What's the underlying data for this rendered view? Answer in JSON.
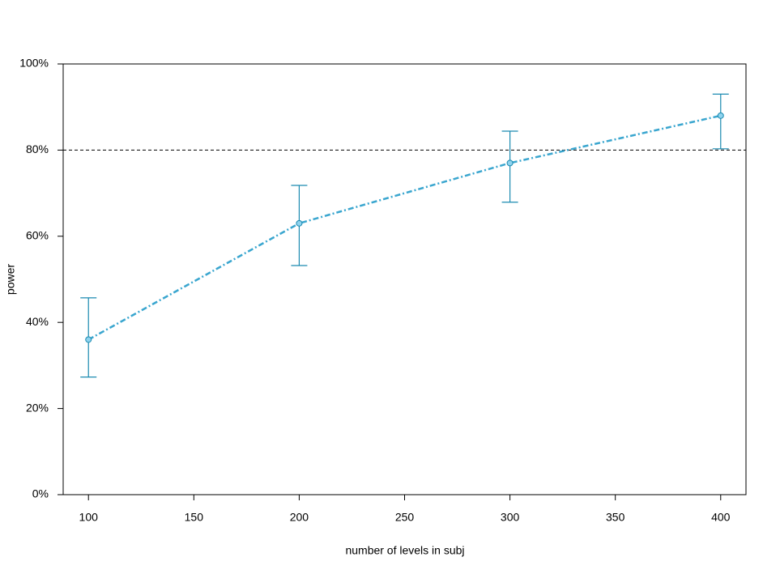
{
  "chart_data": {
    "type": "line",
    "xlabel": "number of levels in subj",
    "ylabel": "power",
    "x": [
      100,
      200,
      300,
      400
    ],
    "values": [
      36,
      63,
      77,
      88
    ],
    "lower": [
      27.3,
      53.2,
      67.9,
      80.3
    ],
    "upper": [
      45.7,
      71.8,
      84.4,
      93.0
    ],
    "color": "#3aa6cf",
    "error_color": "#1a8ab0",
    "marker_fill": "#8fd3ee",
    "reference_line": 80,
    "xlim": [
      88,
      412
    ],
    "xticks": [
      100,
      150,
      200,
      250,
      300,
      350,
      400
    ],
    "ylim": [
      0,
      100
    ],
    "yticks": [
      {
        "value": 0,
        "label": "0%"
      },
      {
        "value": 20,
        "label": "20%"
      },
      {
        "value": 40,
        "label": "40%"
      },
      {
        "value": 60,
        "label": "60%"
      },
      {
        "value": 80,
        "label": "80%"
      },
      {
        "value": 100,
        "label": "100%"
      }
    ]
  }
}
